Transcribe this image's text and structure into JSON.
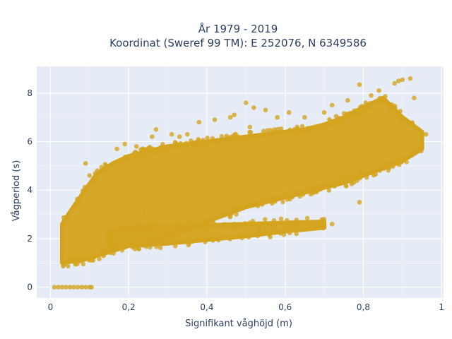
{
  "chart_data": {
    "type": "scatter",
    "title_line1": "År 1979 - 2019",
    "title_line2": "Koordinat (Sweref 99 TM): E 252076, N 6349586",
    "xlabel": "Signifikant våghöjd (m)",
    "ylabel": "Vågperiod (s)",
    "xlim": [
      -0.035,
      1.005
    ],
    "ylim": [
      -0.45,
      9.1
    ],
    "x_ticks": [
      {
        "value": 0,
        "label": "0"
      },
      {
        "value": 0.2,
        "label": "0,2"
      },
      {
        "value": 0.4,
        "label": "0,4"
      },
      {
        "value": 0.6,
        "label": "0,6"
      },
      {
        "value": 0.8,
        "label": "0,8"
      },
      {
        "value": 1.0,
        "label": "1"
      }
    ],
    "y_ticks": [
      {
        "value": 0,
        "label": "0"
      },
      {
        "value": 2,
        "label": "2"
      },
      {
        "value": 4,
        "label": "4"
      },
      {
        "value": 6,
        "label": "6"
      },
      {
        "value": 8,
        "label": "8"
      }
    ],
    "grid": true,
    "plot_bg": "#e5ecf6",
    "marker_color": "#d4a41f",
    "marker_opacity": 0.8,
    "legend": "none",
    "note": "Dense scatter of tens of thousands of hourly observations; represented by envelope bands of the point cloud and the visible outliers.",
    "bands": [
      {
        "name": "upper_cloud",
        "x": [
          0.03,
          0.05,
          0.08,
          0.12,
          0.16,
          0.2,
          0.25,
          0.3,
          0.35,
          0.4,
          0.45,
          0.5,
          0.55,
          0.6,
          0.65,
          0.7,
          0.75,
          0.8,
          0.85,
          0.9,
          0.95
        ],
        "ymin": [
          1.0,
          1.05,
          1.1,
          1.3,
          1.5,
          1.7,
          1.9,
          2.1,
          2.4,
          2.7,
          3.0,
          3.3,
          3.5,
          3.7,
          3.9,
          4.1,
          4.3,
          4.6,
          4.9,
          5.2,
          5.7
        ],
        "ymax": [
          2.6,
          3.1,
          3.8,
          4.7,
          5.1,
          5.4,
          5.6,
          5.8,
          5.9,
          6.0,
          6.1,
          6.2,
          6.3,
          6.4,
          6.5,
          6.7,
          7.0,
          7.4,
          7.8,
          7.0,
          6.4
        ]
      },
      {
        "name": "lower_branch",
        "x": [
          0.15,
          0.2,
          0.3,
          0.4,
          0.5,
          0.6,
          0.7
        ],
        "ymin": [
          1.6,
          1.7,
          1.8,
          1.95,
          2.1,
          2.3,
          2.45
        ],
        "ymax": [
          2.3,
          2.45,
          2.5,
          2.55,
          2.6,
          2.65,
          2.7
        ]
      }
    ],
    "outliers": [
      {
        "x": 0.01,
        "y": 0.0
      },
      {
        "x": 0.02,
        "y": 0.0
      },
      {
        "x": 0.03,
        "y": 0.0
      },
      {
        "x": 0.04,
        "y": 0.0
      },
      {
        "x": 0.05,
        "y": 0.0
      },
      {
        "x": 0.06,
        "y": 0.0
      },
      {
        "x": 0.07,
        "y": 0.0
      },
      {
        "x": 0.08,
        "y": 0.0
      },
      {
        "x": 0.09,
        "y": 0.0
      },
      {
        "x": 0.1,
        "y": 0.0
      },
      {
        "x": 0.105,
        "y": 0.0
      },
      {
        "x": 0.03,
        "y": 1.5
      },
      {
        "x": 0.03,
        "y": 1.3
      },
      {
        "x": 0.09,
        "y": 5.1
      },
      {
        "x": 0.1,
        "y": 4.6
      },
      {
        "x": 0.12,
        "y": 4.8
      },
      {
        "x": 0.17,
        "y": 5.7
      },
      {
        "x": 0.19,
        "y": 5.9
      },
      {
        "x": 0.22,
        "y": 5.8
      },
      {
        "x": 0.26,
        "y": 6.2
      },
      {
        "x": 0.27,
        "y": 6.5
      },
      {
        "x": 0.31,
        "y": 6.3
      },
      {
        "x": 0.33,
        "y": 6.2
      },
      {
        "x": 0.35,
        "y": 6.3
      },
      {
        "x": 0.38,
        "y": 6.8
      },
      {
        "x": 0.42,
        "y": 6.9
      },
      {
        "x": 0.46,
        "y": 7.0
      },
      {
        "x": 0.47,
        "y": 7.1
      },
      {
        "x": 0.5,
        "y": 7.6
      },
      {
        "x": 0.51,
        "y": 6.6
      },
      {
        "x": 0.52,
        "y": 7.4
      },
      {
        "x": 0.55,
        "y": 7.3
      },
      {
        "x": 0.58,
        "y": 7.0
      },
      {
        "x": 0.61,
        "y": 7.2
      },
      {
        "x": 0.65,
        "y": 7.0
      },
      {
        "x": 0.7,
        "y": 7.2
      },
      {
        "x": 0.72,
        "y": 7.5
      },
      {
        "x": 0.76,
        "y": 7.7
      },
      {
        "x": 0.79,
        "y": 8.35
      },
      {
        "x": 0.82,
        "y": 7.9
      },
      {
        "x": 0.84,
        "y": 8.1
      },
      {
        "x": 0.88,
        "y": 8.4
      },
      {
        "x": 0.89,
        "y": 8.5
      },
      {
        "x": 0.9,
        "y": 8.55
      },
      {
        "x": 0.92,
        "y": 8.6
      },
      {
        "x": 0.93,
        "y": 7.8
      },
      {
        "x": 0.95,
        "y": 6.3
      },
      {
        "x": 0.96,
        "y": 6.3
      },
      {
        "x": 0.24,
        "y": 3.1
      },
      {
        "x": 0.26,
        "y": 3.2
      },
      {
        "x": 0.28,
        "y": 3.1
      },
      {
        "x": 0.5,
        "y": 2.4
      },
      {
        "x": 0.55,
        "y": 2.45
      },
      {
        "x": 0.62,
        "y": 2.55
      },
      {
        "x": 0.67,
        "y": 2.6
      },
      {
        "x": 0.7,
        "y": 2.55
      },
      {
        "x": 0.72,
        "y": 2.6
      },
      {
        "x": 0.75,
        "y": 4.6
      },
      {
        "x": 0.79,
        "y": 3.5
      },
      {
        "x": 0.77,
        "y": 4.5
      }
    ]
  }
}
